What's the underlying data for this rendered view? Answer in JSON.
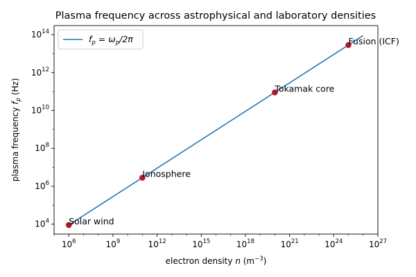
{
  "chart_data": {
    "type": "line",
    "title": "Plasma frequency across astrophysical and laboratory densities",
    "xlabel": {
      "text": "electron density ",
      "var": "n",
      "unit_base": " (m",
      "unit_exp": "−3",
      "unit_close": ")"
    },
    "ylabel": {
      "text": "plasma frequency ",
      "var": "f",
      "sub": "p",
      "unit": " (Hz)"
    },
    "x_scale": "log",
    "y_scale": "log",
    "xlim": [
      100000.0,
      1e+27
    ],
    "ylim": [
      3000.0,
      300000000000000.0
    ],
    "x_ticks": [
      {
        "value": 1000000.0,
        "base": "10",
        "exp": "6"
      },
      {
        "value": 1000000000.0,
        "base": "10",
        "exp": "9"
      },
      {
        "value": 1000000000000.0,
        "base": "10",
        "exp": "12"
      },
      {
        "value": 1000000000000000.0,
        "base": "10",
        "exp": "15"
      },
      {
        "value": 1e+18,
        "base": "10",
        "exp": "18"
      },
      {
        "value": 1e+21,
        "base": "10",
        "exp": "21"
      },
      {
        "value": 1e+24,
        "base": "10",
        "exp": "24"
      },
      {
        "value": 1e+27,
        "base": "10",
        "exp": "27"
      }
    ],
    "y_ticks": [
      {
        "value": 10000.0,
        "base": "10",
        "exp": "4"
      },
      {
        "value": 1000000.0,
        "base": "10",
        "exp": "6"
      },
      {
        "value": 100000000.0,
        "base": "10",
        "exp": "8"
      },
      {
        "value": 10000000000.0,
        "base": "10",
        "exp": "10"
      },
      {
        "value": 1000000000000.0,
        "base": "10",
        "exp": "12"
      },
      {
        "value": 100000000000000.0,
        "base": "10",
        "exp": "14"
      }
    ],
    "grid": false,
    "legend_position": "upper-left",
    "series": [
      {
        "name": "f_p = ω_p/2π",
        "legend_label": {
          "lhs": "f",
          "lhs_sub": "p",
          "eq": " = ",
          "rhs": "ω",
          "rhs_sub": "p",
          "tail": "/2π"
        },
        "color": "#1f77b4",
        "x": [
          1000000.0,
          1e+26
        ],
        "y": [
          8980.0,
          89800000000000.0
        ]
      }
    ],
    "points": [
      {
        "label": "Solar wind",
        "x": 1000000.0,
        "y": 8980.0,
        "color": "#b2182b"
      },
      {
        "label": "Ionosphere",
        "x": 100000000000.0,
        "y": 2840000.0,
        "color": "#b2182b"
      },
      {
        "label": "Tokamak core",
        "x": 1e+20,
        "y": 89800000000.0,
        "color": "#b2182b"
      },
      {
        "label": "Fusion (ICF)",
        "x": 1e+25,
        "y": 28400000000000.0,
        "color": "#b2182b"
      }
    ]
  }
}
